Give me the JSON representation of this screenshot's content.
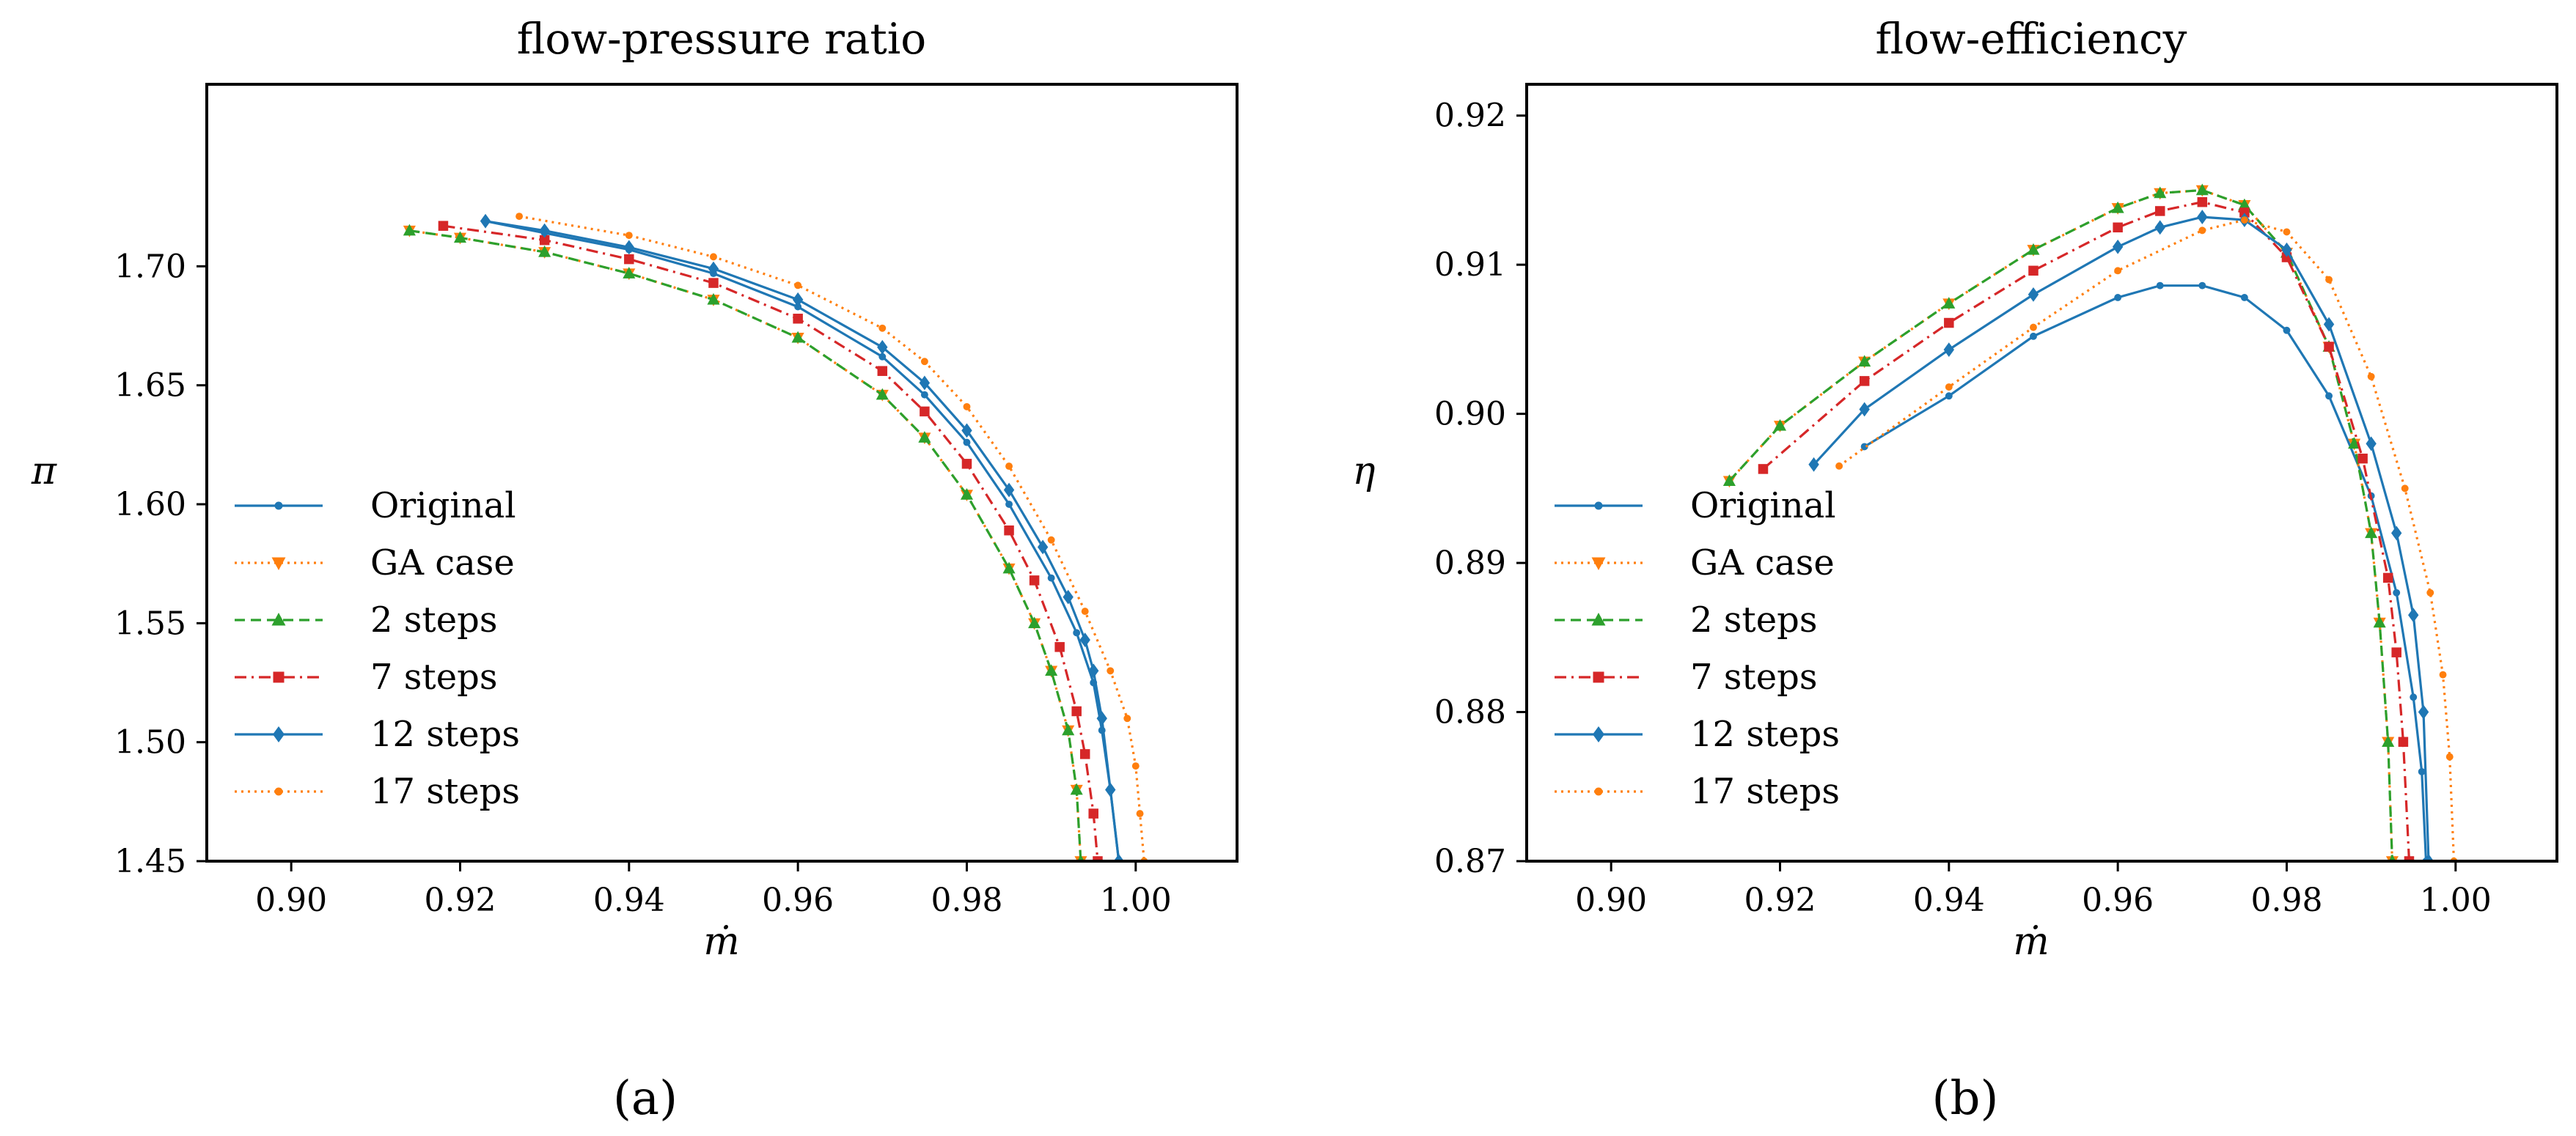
{
  "colors": {
    "blue": "#1f77b4",
    "orange": "#ff7f0e",
    "green": "#2ca02c",
    "red": "#d62728"
  },
  "legend": [
    {
      "label": "Original",
      "color": "#1f77b4",
      "dash": "",
      "marker": "dot"
    },
    {
      "label": "GA case",
      "color": "#ff7f0e",
      "dash": "3,6",
      "marker": "triangle-down"
    },
    {
      "label": "2 steps",
      "color": "#2ca02c",
      "dash": "14,8",
      "marker": "triangle-up"
    },
    {
      "label": "7 steps",
      "color": "#d62728",
      "dash": "16,7,3,7",
      "marker": "square"
    },
    {
      "label": "12 steps",
      "color": "#1f77b4",
      "dash": "",
      "marker": "diamond"
    },
    {
      "label": "17 steps",
      "color": "#ff7f0e",
      "dash": "3,6",
      "marker": "dot"
    }
  ],
  "chart_data": [
    {
      "type": "line",
      "subfig_label": "(a)",
      "title": "flow-pressure ratio",
      "xlabel": "ṁ",
      "ylabel": "π",
      "xlim": [
        0.89,
        1.012
      ],
      "ylim": [
        1.45,
        1.7765
      ],
      "xticks": [
        0.9,
        0.92,
        0.94,
        0.96,
        0.98,
        1.0
      ],
      "xtick_labels": [
        "0.90",
        "0.92",
        "0.94",
        "0.96",
        "0.98",
        "1.00"
      ],
      "yticks": [
        1.45,
        1.5,
        1.55,
        1.6,
        1.65,
        1.7
      ],
      "ytick_labels": [
        "1.45",
        "1.50",
        "1.55",
        "1.60",
        "1.65",
        "1.70"
      ],
      "series": [
        {
          "name": "Original",
          "x": [
            0.923,
            0.93,
            0.94,
            0.95,
            0.96,
            0.97,
            0.975,
            0.98,
            0.985,
            0.99,
            0.993,
            0.995,
            0.996,
            0.997,
            0.998
          ],
          "y": [
            1.719,
            1.714,
            1.707,
            1.697,
            1.683,
            1.662,
            1.646,
            1.626,
            1.6,
            1.569,
            1.546,
            1.525,
            1.505,
            1.48,
            1.45
          ]
        },
        {
          "name": "GA case",
          "x": [
            0.914,
            0.92,
            0.93,
            0.94,
            0.95,
            0.96,
            0.97,
            0.975,
            0.98,
            0.985,
            0.988,
            0.99,
            0.992,
            0.993,
            0.9935
          ],
          "y": [
            1.715,
            1.712,
            1.706,
            1.697,
            1.686,
            1.67,
            1.646,
            1.628,
            1.604,
            1.573,
            1.55,
            1.53,
            1.505,
            1.48,
            1.45
          ]
        },
        {
          "name": "2 steps",
          "x": [
            0.914,
            0.92,
            0.93,
            0.94,
            0.95,
            0.96,
            0.97,
            0.975,
            0.98,
            0.985,
            0.988,
            0.99,
            0.992,
            0.993,
            0.9935
          ],
          "y": [
            1.715,
            1.712,
            1.706,
            1.697,
            1.686,
            1.67,
            1.646,
            1.628,
            1.604,
            1.573,
            1.55,
            1.53,
            1.505,
            1.48,
            1.45
          ]
        },
        {
          "name": "7 steps",
          "x": [
            0.918,
            0.93,
            0.94,
            0.95,
            0.96,
            0.97,
            0.975,
            0.98,
            0.985,
            0.988,
            0.991,
            0.993,
            0.994,
            0.995,
            0.9955
          ],
          "y": [
            1.717,
            1.711,
            1.703,
            1.693,
            1.678,
            1.656,
            1.639,
            1.617,
            1.589,
            1.568,
            1.54,
            1.513,
            1.495,
            1.47,
            1.45
          ]
        },
        {
          "name": "12 steps",
          "x": [
            0.923,
            0.93,
            0.94,
            0.95,
            0.96,
            0.97,
            0.975,
            0.98,
            0.985,
            0.989,
            0.992,
            0.994,
            0.995,
            0.996,
            0.997,
            0.998
          ],
          "y": [
            1.719,
            1.715,
            1.708,
            1.699,
            1.686,
            1.666,
            1.651,
            1.631,
            1.606,
            1.582,
            1.561,
            1.543,
            1.53,
            1.51,
            1.48,
            1.45
          ]
        },
        {
          "name": "17 steps",
          "x": [
            0.927,
            0.94,
            0.95,
            0.96,
            0.97,
            0.975,
            0.98,
            0.985,
            0.99,
            0.994,
            0.997,
            0.999,
            1.0,
            1.0005,
            1.001
          ],
          "y": [
            1.721,
            1.713,
            1.704,
            1.692,
            1.674,
            1.66,
            1.641,
            1.616,
            1.585,
            1.555,
            1.53,
            1.51,
            1.49,
            1.47,
            1.45
          ]
        }
      ]
    },
    {
      "type": "line",
      "subfig_label": "(b)",
      "title": "flow-efficiency",
      "xlabel": "ṁ",
      "ylabel": "η",
      "xlim": [
        0.89,
        1.012
      ],
      "ylim": [
        0.87,
        0.9221
      ],
      "xticks": [
        0.9,
        0.92,
        0.94,
        0.96,
        0.98,
        1.0
      ],
      "xtick_labels": [
        "0.90",
        "0.92",
        "0.94",
        "0.96",
        "0.98",
        "1.00"
      ],
      "yticks": [
        0.87,
        0.88,
        0.89,
        0.9,
        0.91,
        0.92
      ],
      "ytick_labels": [
        "0.87",
        "0.88",
        "0.89",
        "0.90",
        "0.91",
        "0.92"
      ],
      "series": [
        {
          "name": "Original",
          "x": [
            0.93,
            0.94,
            0.95,
            0.96,
            0.965,
            0.97,
            0.975,
            0.98,
            0.985,
            0.99,
            0.993,
            0.995,
            0.996,
            0.9965
          ],
          "y": [
            0.8978,
            0.9012,
            0.9052,
            0.9078,
            0.9086,
            0.9086,
            0.9078,
            0.9056,
            0.9012,
            0.8945,
            0.888,
            0.881,
            0.876,
            0.87
          ]
        },
        {
          "name": "GA case",
          "x": [
            0.914,
            0.92,
            0.93,
            0.94,
            0.95,
            0.96,
            0.965,
            0.97,
            0.975,
            0.98,
            0.985,
            0.988,
            0.99,
            0.991,
            0.992,
            0.9925
          ],
          "y": [
            0.8955,
            0.8992,
            0.9035,
            0.9074,
            0.911,
            0.9138,
            0.9148,
            0.915,
            0.914,
            0.9108,
            0.9045,
            0.898,
            0.892,
            0.886,
            0.878,
            0.87
          ]
        },
        {
          "name": "2 steps",
          "x": [
            0.914,
            0.92,
            0.93,
            0.94,
            0.95,
            0.96,
            0.965,
            0.97,
            0.975,
            0.98,
            0.985,
            0.988,
            0.99,
            0.991,
            0.992,
            0.9925
          ],
          "y": [
            0.8955,
            0.8992,
            0.9035,
            0.9074,
            0.911,
            0.9138,
            0.9148,
            0.915,
            0.914,
            0.9108,
            0.9045,
            0.898,
            0.892,
            0.886,
            0.878,
            0.87
          ]
        },
        {
          "name": "7 steps",
          "x": [
            0.918,
            0.93,
            0.94,
            0.95,
            0.96,
            0.965,
            0.97,
            0.975,
            0.98,
            0.985,
            0.989,
            0.992,
            0.993,
            0.9938,
            0.9945
          ],
          "y": [
            0.8963,
            0.9022,
            0.9061,
            0.9096,
            0.9125,
            0.9136,
            0.9142,
            0.9135,
            0.9105,
            0.9045,
            0.897,
            0.889,
            0.884,
            0.878,
            0.87
          ]
        },
        {
          "name": "12 steps",
          "x": [
            0.924,
            0.93,
            0.94,
            0.95,
            0.96,
            0.965,
            0.97,
            0.975,
            0.98,
            0.985,
            0.99,
            0.993,
            0.995,
            0.9962,
            0.9968
          ],
          "y": [
            0.8966,
            0.9003,
            0.9043,
            0.908,
            0.9112,
            0.9125,
            0.9132,
            0.913,
            0.911,
            0.906,
            0.898,
            0.892,
            0.8865,
            0.88,
            0.87
          ]
        },
        {
          "name": "17 steps",
          "x": [
            0.927,
            0.94,
            0.95,
            0.96,
            0.97,
            0.975,
            0.98,
            0.985,
            0.99,
            0.994,
            0.997,
            0.9985,
            0.9993,
            0.9998
          ],
          "y": [
            0.8965,
            0.9018,
            0.9058,
            0.9096,
            0.9123,
            0.913,
            0.9122,
            0.909,
            0.9025,
            0.895,
            0.888,
            0.8825,
            0.877,
            0.87
          ]
        }
      ]
    }
  ]
}
